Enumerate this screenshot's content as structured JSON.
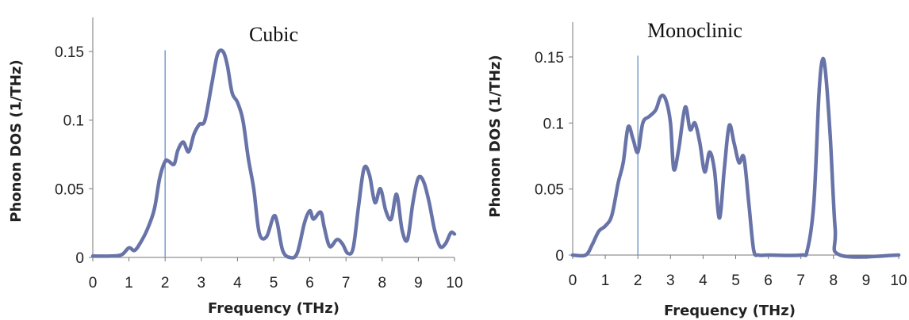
{
  "chart_data": [
    {
      "type": "line",
      "title": "Cubic",
      "xlabel": "Frequency (THz)",
      "ylabel": "Phonon DOS (1/THz)",
      "xlim": [
        0,
        10
      ],
      "ylim": [
        0,
        0.15
      ],
      "xticks": [
        "0",
        "1",
        "2",
        "3",
        "4",
        "5",
        "6",
        "7",
        "8",
        "9",
        "10"
      ],
      "yticks": [
        "0",
        "0.05",
        "0.1",
        "0.15"
      ],
      "vline_x": 2,
      "color": "#6873a8",
      "series": [
        {
          "x": [
            0,
            0.5,
            0.8,
            1.0,
            1.15,
            1.3,
            1.5,
            1.7,
            1.85,
            2.0,
            2.1,
            2.25,
            2.35,
            2.5,
            2.65,
            2.8,
            2.95,
            3.1,
            3.3,
            3.45,
            3.6,
            3.72,
            3.85,
            4.0,
            4.15,
            4.3,
            4.45,
            4.6,
            4.8,
            5.0,
            5.1,
            5.25,
            5.45,
            5.65,
            5.85,
            6.0,
            6.1,
            6.3,
            6.4,
            6.55,
            6.75,
            6.9,
            7.05,
            7.2,
            7.35,
            7.5,
            7.65,
            7.8,
            7.95,
            8.1,
            8.25,
            8.4,
            8.55,
            8.7,
            8.85,
            9.0,
            9.15,
            9.3,
            9.45,
            9.6,
            9.75,
            9.9,
            10
          ],
          "y": [
            0.001,
            0.001,
            0.002,
            0.007,
            0.005,
            0.01,
            0.02,
            0.035,
            0.058,
            0.07,
            0.07,
            0.068,
            0.078,
            0.084,
            0.077,
            0.09,
            0.097,
            0.1,
            0.128,
            0.148,
            0.15,
            0.14,
            0.12,
            0.113,
            0.1,
            0.072,
            0.05,
            0.018,
            0.015,
            0.03,
            0.025,
            0.005,
            0.0,
            0.003,
            0.025,
            0.034,
            0.028,
            0.033,
            0.022,
            0.008,
            0.013,
            0.01,
            0.003,
            0.007,
            0.038,
            0.065,
            0.06,
            0.04,
            0.05,
            0.034,
            0.028,
            0.046,
            0.02,
            0.013,
            0.04,
            0.058,
            0.055,
            0.04,
            0.02,
            0.008,
            0.01,
            0.018,
            0.017
          ]
        }
      ]
    },
    {
      "type": "line",
      "title": "Monoclinic",
      "xlabel": "Frequency (THz)",
      "ylabel": "Phonon  DOS (1/THz)",
      "xlim": [
        0,
        10
      ],
      "ylim": [
        0,
        0.15
      ],
      "xticks": [
        "0",
        "1",
        "2",
        "3",
        "4",
        "5",
        "6",
        "7",
        "8",
        "9",
        "10"
      ],
      "yticks": [
        "0",
        "0.05",
        "0.1",
        "0.15"
      ],
      "vline_x": 2,
      "color": "#6873a8",
      "series": [
        {
          "x": [
            0,
            0.4,
            0.6,
            0.8,
            1.0,
            1.2,
            1.4,
            1.55,
            1.7,
            1.85,
            2.0,
            2.15,
            2.35,
            2.55,
            2.7,
            2.85,
            3.0,
            3.1,
            3.25,
            3.45,
            3.6,
            3.75,
            3.9,
            4.05,
            4.2,
            4.35,
            4.5,
            4.65,
            4.8,
            4.95,
            5.1,
            5.25,
            5.4,
            5.55,
            5.7,
            6.0,
            7.0,
            7.2,
            7.4,
            7.55,
            7.65,
            7.75,
            7.9,
            8.05,
            8.2,
            10
          ],
          "y": [
            0.0,
            0.0,
            0.008,
            0.018,
            0.022,
            0.03,
            0.055,
            0.07,
            0.097,
            0.088,
            0.078,
            0.1,
            0.105,
            0.11,
            0.12,
            0.118,
            0.1,
            0.065,
            0.08,
            0.112,
            0.095,
            0.1,
            0.085,
            0.063,
            0.078,
            0.064,
            0.028,
            0.065,
            0.098,
            0.085,
            0.07,
            0.074,
            0.04,
            0.004,
            0.0,
            0.0,
            0.0,
            0.004,
            0.04,
            0.12,
            0.147,
            0.14,
            0.09,
            0.02,
            0.0,
            0.0
          ]
        }
      ]
    }
  ]
}
